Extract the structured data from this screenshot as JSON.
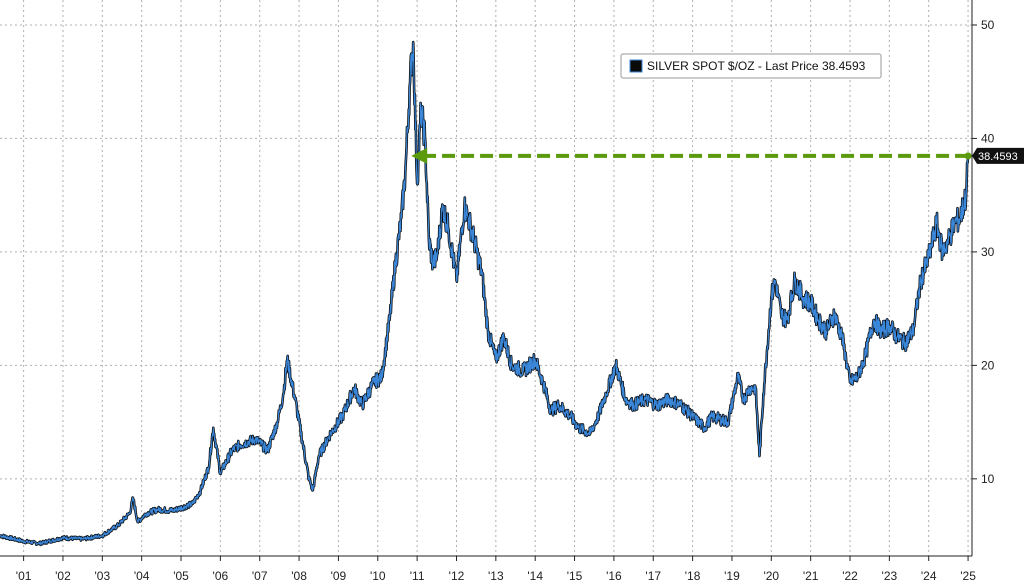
{
  "chart_data": {
    "type": "line",
    "legend": {
      "text": "SILVER SPOT $/OZ - Last Price 38.4593",
      "placement": "top-right"
    },
    "last_price_label": "38.4593",
    "last_price": 38.4593,
    "colors": {
      "line_dark": "#0a0a0a",
      "line_blue": "#3a86d8",
      "arrow": "#5a9a0c",
      "grid": "#b0b0b0",
      "axis": "#222222",
      "tag_bg": "#111111"
    },
    "y_axis": {
      "side": "right",
      "ylim": [
        3.2,
        52.2
      ],
      "ticks": [
        10,
        20,
        30,
        40,
        50
      ],
      "tick_labels": [
        "10",
        "20",
        "30",
        "40",
        "50"
      ]
    },
    "x_axis": {
      "xlim": [
        2000.9,
        2025.6
      ],
      "ticks": [
        2001.5,
        2002.5,
        2003.5,
        2004.5,
        2005.5,
        2006.5,
        2007.5,
        2008.5,
        2009.5,
        2010.5,
        2011.5,
        2012.5,
        2013.5,
        2014.5,
        2015.5,
        2016.5,
        2017.5,
        2018.5,
        2019.5,
        2020.5,
        2021.5,
        2022.5,
        2023.5,
        2024.5,
        2025.5
      ],
      "tick_labels": [
        "'01",
        "'02",
        "'03",
        "'04",
        "'05",
        "'06",
        "'07",
        "'08",
        "'09",
        "'10",
        "'11",
        "'12",
        "'13",
        "'14",
        "'15",
        "'16",
        "'17",
        "'18",
        "'19",
        "'20",
        "'21",
        "'22",
        "'23",
        "'24",
        "'25"
      ]
    },
    "grid": true,
    "arrow": {
      "from_x": 2025.5,
      "to_x": 2011.35,
      "y": 38.4593,
      "style": "dashed",
      "direction": "left"
    },
    "series": [
      {
        "x": [
          2000.9,
          2001.5,
          2001.9,
          2002.5,
          2003.0,
          2003.5,
          2003.9,
          2004.2,
          2004.28,
          2004.4,
          2004.6,
          2004.9,
          2005.3,
          2005.8,
          2006.0,
          2006.2,
          2006.32,
          2006.5,
          2006.8,
          2007.0,
          2007.4,
          2007.7,
          2007.95,
          2008.1,
          2008.2,
          2008.4,
          2008.6,
          2008.75,
          2008.85,
          2009.0,
          2009.3,
          2009.6,
          2009.9,
          2010.1,
          2010.4,
          2010.6,
          2010.8,
          2010.95,
          2011.1,
          2011.2,
          2011.32,
          2011.4,
          2011.5,
          2011.6,
          2011.7,
          2011.8,
          2011.9,
          2012.0,
          2012.15,
          2012.3,
          2012.5,
          2012.7,
          2012.8,
          2012.95,
          2013.15,
          2013.3,
          2013.5,
          2013.7,
          2013.9,
          2014.2,
          2014.5,
          2014.7,
          2014.9,
          2015.1,
          2015.4,
          2015.6,
          2015.9,
          2016.1,
          2016.3,
          2016.55,
          2016.8,
          2017.0,
          2017.3,
          2017.6,
          2017.9,
          2018.2,
          2018.5,
          2018.8,
          2019.0,
          2019.4,
          2019.65,
          2019.8,
          2019.95,
          2020.1,
          2020.2,
          2020.3,
          2020.5,
          2020.6,
          2020.75,
          2020.9,
          2021.1,
          2021.3,
          2021.5,
          2021.7,
          2021.9,
          2022.1,
          2022.3,
          2022.5,
          2022.7,
          2022.9,
          2023.1,
          2023.3,
          2023.5,
          2023.7,
          2023.9,
          2024.1,
          2024.3,
          2024.5,
          2024.7,
          2024.85,
          2025.0,
          2025.15,
          2025.3,
          2025.45,
          2025.5
        ],
        "y": [
          5.0,
          4.5,
          4.3,
          4.8,
          4.7,
          5.0,
          5.9,
          7.0,
          8.3,
          6.2,
          6.9,
          7.3,
          7.2,
          7.8,
          9.0,
          11.0,
          14.5,
          10.5,
          12.5,
          13.0,
          13.5,
          12.5,
          15.0,
          17.5,
          20.5,
          17.0,
          13.0,
          10.0,
          9.0,
          12.0,
          14.0,
          15.5,
          18.0,
          16.5,
          18.5,
          19.0,
          24.0,
          29.0,
          33.0,
          37.0,
          45.0,
          48.5,
          36.0,
          42.5,
          40.0,
          31.0,
          29.0,
          29.5,
          34.0,
          32.0,
          27.5,
          34.0,
          33.0,
          31.0,
          28.0,
          23.0,
          20.5,
          22.5,
          20.0,
          19.5,
          20.5,
          18.5,
          16.0,
          16.5,
          15.5,
          14.5,
          14.0,
          15.5,
          17.5,
          20.0,
          17.0,
          16.5,
          17.0,
          16.5,
          17.0,
          16.5,
          15.5,
          14.5,
          15.5,
          15.0,
          19.0,
          17.0,
          18.0,
          18.0,
          12.0,
          17.5,
          26.0,
          27.5,
          24.5,
          24.0,
          27.5,
          26.0,
          25.5,
          24.0,
          23.0,
          24.5,
          22.5,
          18.5,
          19.0,
          21.0,
          24.0,
          23.0,
          23.5,
          22.5,
          22.0,
          23.0,
          27.5,
          29.5,
          32.5,
          30.0,
          31.0,
          32.5,
          33.0,
          35.0,
          38.4593
        ]
      }
    ]
  }
}
